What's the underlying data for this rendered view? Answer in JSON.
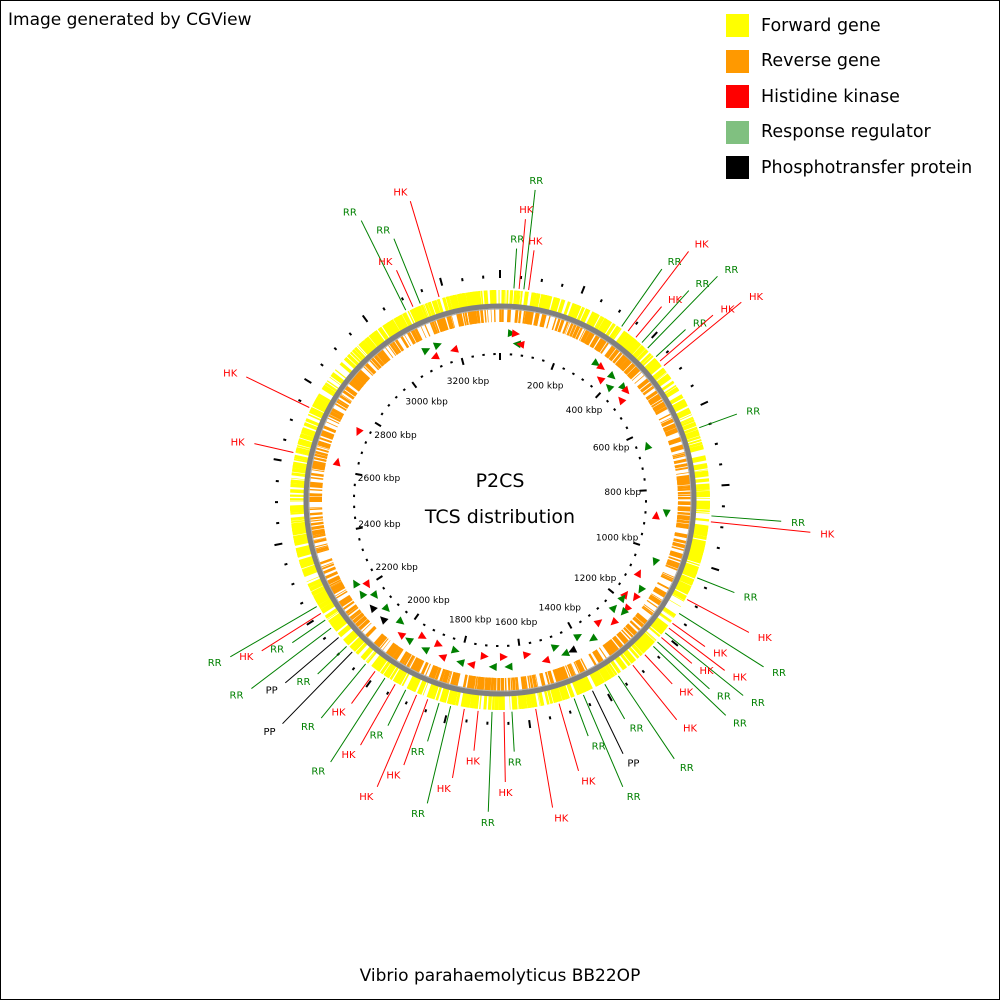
{
  "credit": "Image generated by CGView",
  "organism": "Vibrio parahaemolyticus BB22OP",
  "center_title": "P2CS",
  "center_subtitle": "TCS distribution",
  "legend": [
    {
      "label": "Forward gene",
      "color": "#FFFF00"
    },
    {
      "label": "Reverse gene",
      "color": "#FF9900"
    },
    {
      "label": "Histidine kinase",
      "color": "#FF0000"
    },
    {
      "label": "Response regulator",
      "color": "#80C080"
    },
    {
      "label": "Phosphotransfer protein",
      "color": "#000000"
    }
  ],
  "colors": {
    "forward": "#FFFF00",
    "reverse": "#FF9900",
    "backbone": "#808080",
    "HK": "#FF0000",
    "RR": "#008000",
    "PP": "#000000"
  },
  "genome_kbp": 3340,
  "tick_labels": [
    "200 kbp",
    "400 kbp",
    "600 kbp",
    "800 kbp",
    "1000 kbp",
    "1200 kbp",
    "1400 kbp",
    "1600 kbp",
    "1800 kbp",
    "2000 kbp",
    "2200 kbp",
    "2400 kbp",
    "2600 kbp",
    "2800 kbp",
    "3000 kbp",
    "3200 kbp"
  ],
  "tick_positions_kbp": [
    200,
    400,
    600,
    800,
    1000,
    1200,
    1400,
    1600,
    1800,
    2000,
    2200,
    2400,
    2600,
    2800,
    3000,
    3200
  ],
  "features": [
    {
      "type": "RR",
      "kbp": 35,
      "strand": "forward"
    },
    {
      "type": "HK",
      "kbp": 48,
      "strand": "forward"
    },
    {
      "type": "RR",
      "kbp": 60,
      "strand": "reverse"
    },
    {
      "type": "HK",
      "kbp": 72,
      "strand": "reverse"
    },
    {
      "type": "RR",
      "kbp": 325,
      "strand": "forward"
    },
    {
      "type": "HK",
      "kbp": 345,
      "strand": "forward"
    },
    {
      "type": "HK",
      "kbp": 370,
      "strand": "reverse"
    },
    {
      "type": "RR",
      "kbp": 390,
      "strand": "forward"
    },
    {
      "type": "RR",
      "kbp": 410,
      "strand": "reverse"
    },
    {
      "type": "RR",
      "kbp": 440,
      "strand": "forward"
    },
    {
      "type": "HK",
      "kbp": 455,
      "strand": "forward"
    },
    {
      "type": "HK",
      "kbp": 470,
      "strand": "reverse"
    },
    {
      "type": "RR",
      "kbp": 650,
      "strand": "reverse"
    },
    {
      "type": "RR",
      "kbp": 875,
      "strand": "forward"
    },
    {
      "type": "HK",
      "kbp": 890,
      "strand": "reverse"
    },
    {
      "type": "RR",
      "kbp": 1035,
      "strand": "forward"
    },
    {
      "type": "HK",
      "kbp": 1095,
      "strand": "reverse"
    },
    {
      "type": "RR",
      "kbp": 1135,
      "strand": "forward"
    },
    {
      "type": "HK",
      "kbp": 1165,
      "strand": "forward"
    },
    {
      "type": "HK",
      "kbp": 1180,
      "strand": "reverse"
    },
    {
      "type": "RR",
      "kbp": 1195,
      "strand": "reverse"
    },
    {
      "type": "HK",
      "kbp": 1210,
      "strand": "forward"
    },
    {
      "type": "RR",
      "kbp": 1225,
      "strand": "forward"
    },
    {
      "type": "RR",
      "kbp": 1240,
      "strand": "reverse"
    },
    {
      "type": "HK",
      "kbp": 1270,
      "strand": "forward"
    },
    {
      "type": "HK",
      "kbp": 1310,
      "strand": "reverse"
    },
    {
      "type": "RR",
      "kbp": 1355,
      "strand": "forward"
    },
    {
      "type": "RR",
      "kbp": 1395,
      "strand": "reverse"
    },
    {
      "type": "PP",
      "kbp": 1430,
      "strand": "forward"
    },
    {
      "type": "RR",
      "kbp": 1455,
      "strand": "forward"
    },
    {
      "type": "RR",
      "kbp": 1480,
      "strand": "reverse"
    },
    {
      "type": "HK",
      "kbp": 1520,
      "strand": "forward"
    },
    {
      "type": "HK",
      "kbp": 1580,
      "strand": "reverse"
    },
    {
      "type": "RR",
      "kbp": 1640,
      "strand": "forward"
    },
    {
      "type": "HK",
      "kbp": 1660,
      "strand": "reverse"
    },
    {
      "type": "RR",
      "kbp": 1690,
      "strand": "forward"
    },
    {
      "type": "HK",
      "kbp": 1725,
      "strand": "reverse"
    },
    {
      "type": "HK",
      "kbp": 1760,
      "strand": "forward"
    },
    {
      "type": "RR",
      "kbp": 1795,
      "strand": "forward"
    },
    {
      "type": "RR",
      "kbp": 1825,
      "strand": "reverse"
    },
    {
      "type": "HK",
      "kbp": 1855,
      "strand": "forward"
    },
    {
      "type": "HK",
      "kbp": 1885,
      "strand": "reverse"
    },
    {
      "type": "RR",
      "kbp": 1915,
      "strand": "forward"
    },
    {
      "type": "HK",
      "kbp": 1945,
      "strand": "reverse"
    },
    {
      "type": "RR",
      "kbp": 1975,
      "strand": "forward"
    },
    {
      "type": "HK",
      "kbp": 2005,
      "strand": "forward"
    },
    {
      "type": "RR",
      "kbp": 2035,
      "strand": "reverse"
    },
    {
      "type": "PP",
      "kbp": 2080,
      "strand": "forward"
    },
    {
      "type": "RR",
      "kbp": 2100,
      "strand": "reverse"
    },
    {
      "type": "PP",
      "kbp": 2130,
      "strand": "forward"
    },
    {
      "type": "RR",
      "kbp": 2160,
      "strand": "reverse"
    },
    {
      "type": "RR",
      "kbp": 2185,
      "strand": "forward"
    },
    {
      "type": "HK",
      "kbp": 2205,
      "strand": "reverse"
    },
    {
      "type": "RR",
      "kbp": 2225,
      "strand": "forward"
    },
    {
      "type": "HK",
      "kbp": 2625,
      "strand": "forward"
    },
    {
      "type": "HK",
      "kbp": 2745,
      "strand": "reverse"
    },
    {
      "type": "RR",
      "kbp": 3095,
      "strand": "forward"
    },
    {
      "type": "HK",
      "kbp": 3115,
      "strand": "reverse"
    },
    {
      "type": "RR",
      "kbp": 3135,
      "strand": "forward"
    },
    {
      "type": "HK",
      "kbp": 3185,
      "strand": "reverse"
    }
  ]
}
